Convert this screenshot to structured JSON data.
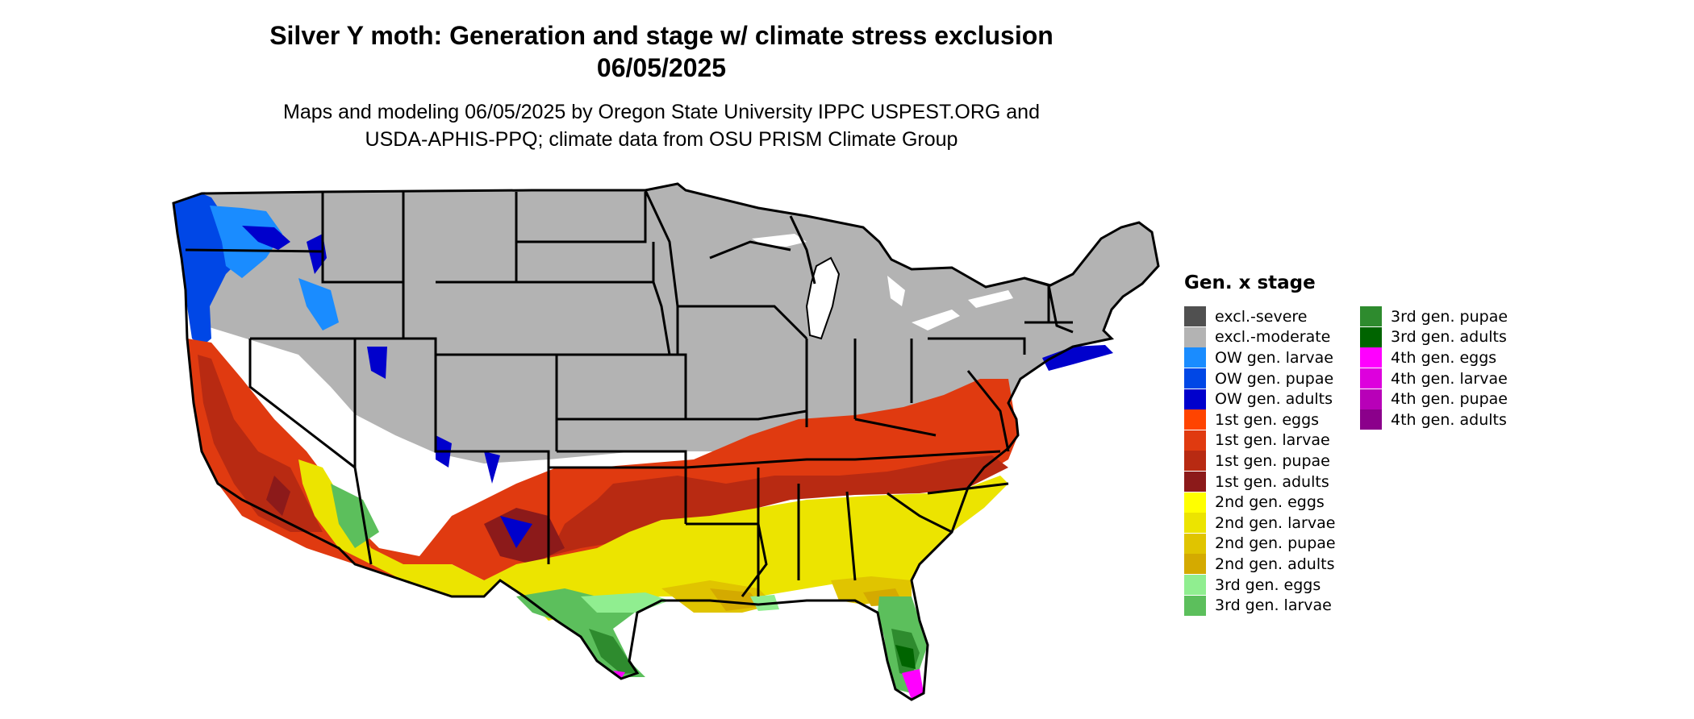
{
  "title_line1": "Silver Y moth: Generation and stage w/ climate stress exclusion",
  "title_line2": "06/05/2025",
  "subtitle_line1": "Maps and modeling 06/05/2025 by Oregon State University IPPC USPEST.ORG and",
  "subtitle_line2": "USDA-APHIS-PPQ; climate data from OSU PRISM Climate Group",
  "legend": {
    "title": "Gen. x stage",
    "items": [
      {
        "label": "excl.-severe",
        "color": "#505050"
      },
      {
        "label": "excl.-moderate",
        "color": "#b3b3b3"
      },
      {
        "label": "OW gen. larvae",
        "color": "#1a8cff"
      },
      {
        "label": "OW gen. pupae",
        "color": "#0047e6"
      },
      {
        "label": "OW gen. adults",
        "color": "#0000cc"
      },
      {
        "label": "1st gen. eggs",
        "color": "#ff4400"
      },
      {
        "label": "1st gen. larvae",
        "color": "#e03a10"
      },
      {
        "label": "1st gen. pupae",
        "color": "#b82a12"
      },
      {
        "label": "1st gen. adults",
        "color": "#8c1a1a"
      },
      {
        "label": "2nd gen. eggs",
        "color": "#ffff00"
      },
      {
        "label": "2nd gen. larvae",
        "color": "#ece400"
      },
      {
        "label": "2nd gen. pupae",
        "color": "#e0c400"
      },
      {
        "label": "2nd gen. adults",
        "color": "#d4aa00"
      },
      {
        "label": "3rd gen. eggs",
        "color": "#90ee90"
      },
      {
        "label": "3rd gen. larvae",
        "color": "#5cbf5c"
      },
      {
        "label": "3rd gen. pupae",
        "color": "#2e8b2e"
      },
      {
        "label": "3rd gen. adults",
        "color": "#006400"
      },
      {
        "label": "4th gen. eggs",
        "color": "#ff00ff"
      },
      {
        "label": "4th gen. larvae",
        "color": "#dd00dd"
      },
      {
        "label": "4th gen. pupae",
        "color": "#b800b8"
      },
      {
        "label": "4th gen. adults",
        "color": "#8b008b"
      }
    ]
  }
}
